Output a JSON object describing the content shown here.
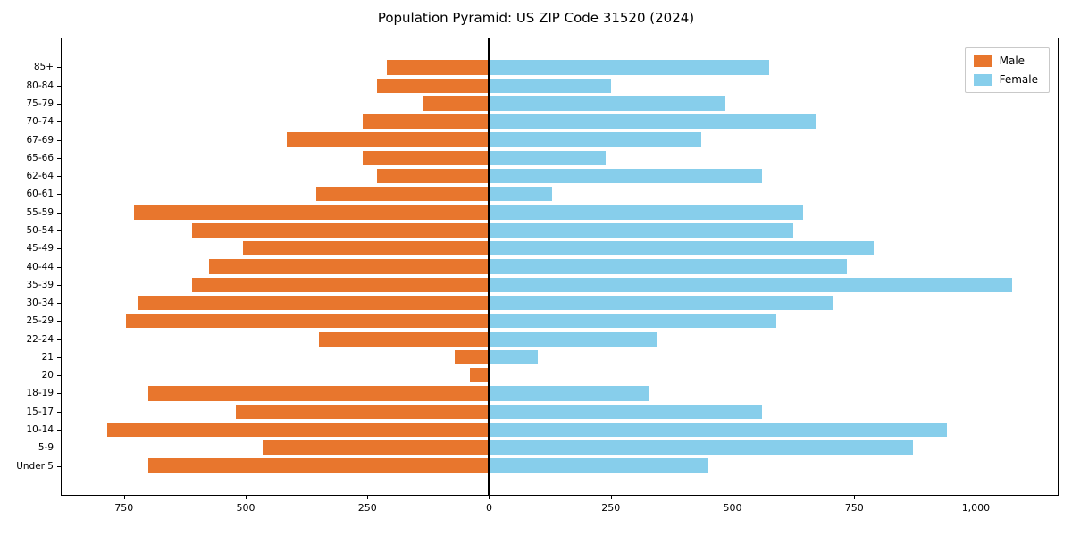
{
  "chart_data": {
    "type": "bar",
    "variant": "population-pyramid",
    "title": "Population Pyramid: US ZIP Code 31520 (2024)",
    "xlabel": "",
    "ylabel": "",
    "categories": [
      "85+",
      "80-84",
      "75-79",
      "70-74",
      "67-69",
      "65-66",
      "62-64",
      "60-61",
      "55-59",
      "50-54",
      "45-49",
      "40-44",
      "35-39",
      "30-34",
      "25-29",
      "22-24",
      "21",
      "20",
      "18-19",
      "15-17",
      "10-14",
      "5-9",
      "Under 5"
    ],
    "series": [
      {
        "name": "Male",
        "side": "left",
        "color": "#e8762d",
        "values": [
          210,
          230,
          135,
          260,
          415,
          260,
          230,
          355,
          730,
          610,
          505,
          575,
          610,
          720,
          745,
          350,
          70,
          40,
          700,
          520,
          785,
          465,
          700
        ]
      },
      {
        "name": "Female",
        "side": "right",
        "color": "#87ceeb",
        "values": [
          575,
          250,
          485,
          670,
          435,
          240,
          560,
          130,
          645,
          625,
          790,
          735,
          1075,
          705,
          590,
          345,
          100,
          0,
          330,
          560,
          940,
          870,
          450
        ]
      }
    ],
    "xlim": [
      -878,
      1168
    ],
    "xticks": {
      "values": [
        -750,
        -500,
        -250,
        0,
        250,
        500,
        750,
        1000
      ],
      "labels": [
        "750",
        "500",
        "250",
        "0",
        "250",
        "500",
        "750",
        "1,000"
      ]
    },
    "legend_position": "upper right",
    "grid": false,
    "zero_line": true
  }
}
